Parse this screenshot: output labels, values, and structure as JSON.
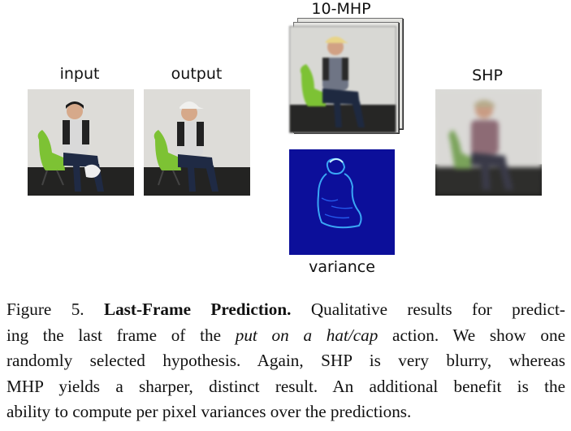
{
  "figure": {
    "labels": {
      "input": "input",
      "output": "output",
      "mhp": "10-MHP",
      "shp": "SHP",
      "variance": "variance"
    },
    "caption": {
      "lines": [
        {
          "pre": "Figure 5. ",
          "bold": "Last-Frame Prediction.",
          "post": " Qualitative results for predict-"
        },
        {
          "pre": "ing the last frame of the ",
          "italic": "put on a hat/cap",
          "post": " action.  We show one"
        },
        {
          "pre": "randomly selected hypothesis. Again, SHP is very blurry, whereas"
        },
        {
          "pre": "MHP yields a sharper, distinct result.  An additional benefit is the"
        },
        {
          "pre": "ability to compute per pixel variances over the predictions."
        }
      ]
    }
  },
  "colors": {
    "background": "#ffffff",
    "chair": "#7dc234",
    "variance_bg": "#0c0f9a",
    "variance_line": "#3fb8ff"
  }
}
